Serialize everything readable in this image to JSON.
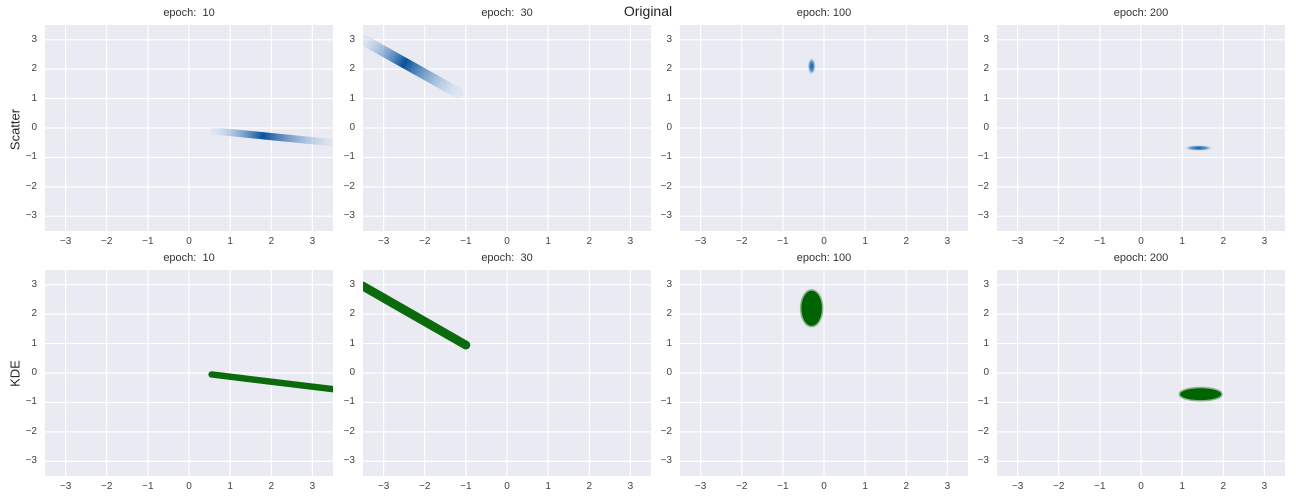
{
  "figure": {
    "suptitle": "Original",
    "row_labels": [
      "Scatter",
      "KDE"
    ]
  },
  "colors": {
    "axes_bg": "#eaeaf2",
    "grid": "#ffffff",
    "kde_dark": "#08519c",
    "kde_light": "#c6dbef",
    "scatter": "#006400"
  },
  "chart_data": [
    {
      "type": "heatmap",
      "row": "Scatter",
      "title": "epoch:  10",
      "xlim": [
        -3.5,
        3.5
      ],
      "ylim": [
        -3.5,
        3.5
      ],
      "xticks": [
        -3,
        -2,
        -1,
        0,
        1,
        2,
        3
      ],
      "yticks": [
        -3,
        -2,
        -1,
        0,
        1,
        2,
        3
      ],
      "grid": true,
      "shape": {
        "kind": "line",
        "from": [
          0.6,
          -0.1
        ],
        "to": [
          3.5,
          -0.5
        ],
        "peak": [
          1.8,
          -0.25
        ],
        "width": 0.08
      }
    },
    {
      "type": "heatmap",
      "row": "Scatter",
      "title": "epoch:  30",
      "xlim": [
        -3.5,
        3.5
      ],
      "ylim": [
        -3.5,
        3.5
      ],
      "xticks": [
        -3,
        -2,
        -1,
        0,
        1,
        2,
        3
      ],
      "yticks": [
        -3,
        -2,
        -1,
        0,
        1,
        2,
        3
      ],
      "grid": true,
      "shape": {
        "kind": "line",
        "from": [
          -3.5,
          3.0
        ],
        "to": [
          -1.2,
          1.2
        ],
        "peak": [
          -2.5,
          2.2
        ],
        "width": 0.12
      }
    },
    {
      "type": "heatmap",
      "row": "Scatter",
      "title": "epoch: 100",
      "xlim": [
        -3.5,
        3.5
      ],
      "ylim": [
        -3.5,
        3.5
      ],
      "xticks": [
        -3,
        -2,
        -1,
        0,
        1,
        2,
        3
      ],
      "yticks": [
        -3,
        -2,
        -1,
        0,
        1,
        2,
        3
      ],
      "grid": true,
      "shape": {
        "kind": "blob",
        "center": [
          -0.3,
          2.1
        ],
        "rx": 0.1,
        "ry": 0.3
      }
    },
    {
      "type": "heatmap",
      "row": "Scatter",
      "title": "epoch: 200",
      "xlim": [
        -3.5,
        3.5
      ],
      "ylim": [
        -3.5,
        3.5
      ],
      "xticks": [
        -3,
        -2,
        -1,
        0,
        1,
        2,
        3
      ],
      "yticks": [
        -3,
        -2,
        -1,
        0,
        1,
        2,
        3
      ],
      "grid": true,
      "shape": {
        "kind": "blob",
        "center": [
          1.4,
          -0.68
        ],
        "rx": 0.35,
        "ry": 0.1
      }
    },
    {
      "type": "scatter",
      "row": "KDE",
      "title": "epoch:  10",
      "xlim": [
        -3.5,
        3.5
      ],
      "ylim": [
        -3.5,
        3.5
      ],
      "xticks": [
        -3,
        -2,
        -1,
        0,
        1,
        2,
        3
      ],
      "yticks": [
        -3,
        -2,
        -1,
        0,
        1,
        2,
        3
      ],
      "grid": true,
      "shape": {
        "kind": "line",
        "from": [
          0.55,
          -0.05
        ],
        "to": [
          3.5,
          -0.55
        ],
        "width": 0.22
      }
    },
    {
      "type": "scatter",
      "row": "KDE",
      "title": "epoch:  30",
      "xlim": [
        -3.5,
        3.5
      ],
      "ylim": [
        -3.5,
        3.5
      ],
      "xticks": [
        -3,
        -2,
        -1,
        0,
        1,
        2,
        3
      ],
      "yticks": [
        -3,
        -2,
        -1,
        0,
        1,
        2,
        3
      ],
      "grid": true,
      "shape": {
        "kind": "line",
        "from": [
          -3.5,
          2.95
        ],
        "to": [
          -1.0,
          0.95
        ],
        "width": 0.3
      }
    },
    {
      "type": "scatter",
      "row": "KDE",
      "title": "epoch: 100",
      "xlim": [
        -3.5,
        3.5
      ],
      "ylim": [
        -3.5,
        3.5
      ],
      "xticks": [
        -3,
        -2,
        -1,
        0,
        1,
        2,
        3
      ],
      "yticks": [
        -3,
        -2,
        -1,
        0,
        1,
        2,
        3
      ],
      "grid": true,
      "shape": {
        "kind": "blob",
        "center": [
          -0.3,
          2.2
        ],
        "rx": 0.25,
        "ry": 0.6
      }
    },
    {
      "type": "scatter",
      "row": "KDE",
      "title": "epoch: 200",
      "xlim": [
        -3.5,
        3.5
      ],
      "ylim": [
        -3.5,
        3.5
      ],
      "xticks": [
        -3,
        -2,
        -1,
        0,
        1,
        2,
        3
      ],
      "yticks": [
        -3,
        -2,
        -1,
        0,
        1,
        2,
        3
      ],
      "grid": true,
      "shape": {
        "kind": "blob",
        "center": [
          1.45,
          -0.72
        ],
        "rx": 0.5,
        "ry": 0.2
      }
    }
  ]
}
